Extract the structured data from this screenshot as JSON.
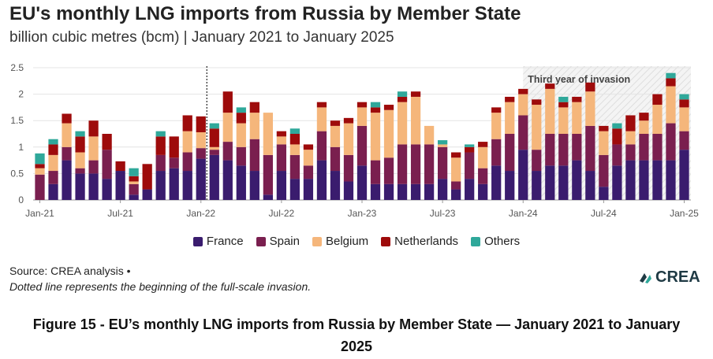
{
  "header": {
    "title": "EU's monthly LNG imports from Russia by Member State",
    "subtitle": "billion cubic metres (bcm) | January 2021 to January 2025"
  },
  "footer": {
    "source": "Source: CREA analysis •",
    "note": "Dotted line represents the beginning of the full-scale invasion.",
    "logo_text": "CREA",
    "caption": "Figure 15 - EU’s monthly LNG imports from Russia by Member State — January 2021 to January 2025"
  },
  "colors": {
    "France": "#3a1c6e",
    "Spain": "#7a1f4f",
    "Belgium": "#f5b67b",
    "Netherlands": "#9e0b0b",
    "Others": "#2fa89a"
  },
  "chart_data": {
    "type": "bar",
    "stacked": true,
    "title": "EU's monthly LNG imports from Russia by Member State",
    "ylabel": "billion cubic metres (bcm)",
    "ylim": [
      0,
      2.5
    ],
    "yticks": [
      "0",
      "0.5",
      "1",
      "1.5",
      "2",
      "2.5"
    ],
    "xtick_labels": [
      "Jan-21",
      "Jul-21",
      "Jan-22",
      "Jul-22",
      "Jan-23",
      "Jul-23",
      "Jan-24",
      "Jul-24",
      "Jan-25"
    ],
    "grid": true,
    "legend_position": "bottom",
    "annotation": "Third year of invasion",
    "invasion_marker": "Feb-22",
    "categories": [
      "Jan-21",
      "Feb-21",
      "Mar-21",
      "Apr-21",
      "May-21",
      "Jun-21",
      "Jul-21",
      "Aug-21",
      "Sep-21",
      "Oct-21",
      "Nov-21",
      "Dec-21",
      "Jan-22",
      "Feb-22",
      "Mar-22",
      "Apr-22",
      "May-22",
      "Jun-22",
      "Jul-22",
      "Aug-22",
      "Sep-22",
      "Oct-22",
      "Nov-22",
      "Dec-22",
      "Jan-23",
      "Feb-23",
      "Mar-23",
      "Apr-23",
      "May-23",
      "Jun-23",
      "Jul-23",
      "Aug-23",
      "Sep-23",
      "Oct-23",
      "Nov-23",
      "Dec-23",
      "Jan-24",
      "Feb-24",
      "Mar-24",
      "Apr-24",
      "May-24",
      "Jun-24",
      "Jul-24",
      "Aug-24",
      "Sep-24",
      "Oct-24",
      "Nov-24",
      "Dec-24",
      "Jan-25"
    ],
    "series": [
      {
        "name": "France",
        "values": [
          0,
          0.3,
          0.75,
          0.5,
          0.5,
          0.4,
          0.55,
          0.1,
          0.2,
          0.55,
          0.6,
          0.55,
          0.78,
          0.85,
          0.75,
          0.65,
          0.55,
          0.1,
          0.55,
          0.4,
          0.4,
          0.75,
          0.55,
          0.35,
          0.65,
          0.3,
          0.3,
          0.3,
          0.3,
          0.3,
          0.4,
          0.2,
          0.4,
          0.3,
          0.65,
          0.55,
          0.95,
          0.55,
          0.65,
          0.65,
          0.75,
          0.55,
          0.25,
          0.65,
          0.75,
          0.75,
          0.75,
          0.75,
          0.95
        ]
      },
      {
        "name": "Spain",
        "values": [
          0.48,
          0.25,
          0.25,
          0.1,
          0.25,
          0.55,
          0,
          0.2,
          0,
          0.3,
          0.2,
          0.35,
          0.2,
          0.1,
          0.35,
          0.35,
          0.6,
          0.75,
          0.5,
          0.45,
          0.25,
          0.55,
          0.45,
          0.5,
          0.75,
          0.45,
          0.5,
          0.75,
          0.75,
          0.75,
          0.6,
          0.15,
          0.5,
          0.3,
          0.5,
          0.7,
          0.65,
          0.4,
          0.6,
          0.6,
          0.5,
          0.85,
          0.6,
          0.4,
          0.3,
          0.5,
          0.5,
          0.7,
          0.35
        ]
      },
      {
        "name": "Belgium",
        "values": [
          0.12,
          0.3,
          0.45,
          0.3,
          0.45,
          0,
          0,
          0.05,
          0,
          0,
          0,
          0.4,
          0.3,
          0.05,
          0.55,
          0.45,
          0.5,
          0.8,
          0.15,
          0.2,
          0.3,
          0.45,
          0.4,
          0.6,
          0.35,
          0.9,
          0.9,
          0.8,
          0.9,
          0.35,
          0.05,
          0.45,
          0,
          0.4,
          0.5,
          0.6,
          0.4,
          0.85,
          0.85,
          0.5,
          0.6,
          0.65,
          0.45,
          0,
          0.25,
          0.25,
          0.55,
          0.7,
          0.45
        ]
      },
      {
        "name": "Netherlands",
        "values": [
          0.08,
          0.2,
          0.18,
          0.3,
          0.3,
          0.3,
          0.18,
          0.1,
          0.48,
          0.35,
          0.4,
          0.3,
          0.3,
          0.35,
          0.4,
          0.2,
          0.2,
          0,
          0.1,
          0.2,
          0.1,
          0.1,
          0.1,
          0.1,
          0.1,
          0.1,
          0.1,
          0.1,
          0.1,
          0,
          0,
          0.1,
          0.1,
          0.1,
          0.1,
          0.1,
          0.1,
          0.1,
          0.1,
          0.1,
          0.1,
          0.17,
          0.1,
          0.3,
          0.3,
          0.15,
          0.2,
          0.15,
          0.15
        ]
      },
      {
        "name": "Others",
        "values": [
          0.2,
          0.1,
          0,
          0.1,
          0,
          0,
          0,
          0.15,
          0,
          0.1,
          0,
          0,
          0,
          0.1,
          0,
          0.1,
          0,
          0,
          0,
          0.1,
          0,
          0,
          0,
          0,
          0,
          0.1,
          0,
          0.1,
          0,
          0,
          0.08,
          0,
          0.05,
          0,
          0,
          0,
          0,
          0,
          0,
          0.1,
          0,
          0,
          0,
          0.1,
          0,
          0,
          0,
          0.1,
          0.1
        ]
      }
    ]
  }
}
